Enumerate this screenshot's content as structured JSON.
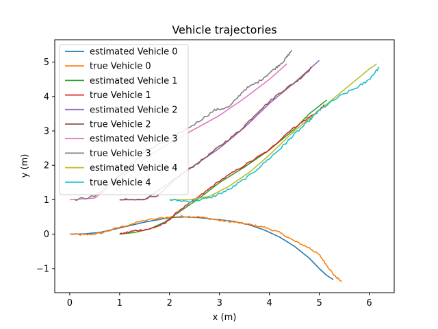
{
  "chart_data": {
    "type": "line",
    "title": "Vehicle trajectories",
    "xlabel": "x (m)",
    "ylabel": "y (m)",
    "xlim": [
      -0.3,
      6.5
    ],
    "ylim": [
      -1.7,
      5.65
    ],
    "xticks": [
      0,
      1,
      2,
      3,
      4,
      5,
      6
    ],
    "yticks": [
      -1,
      0,
      1,
      2,
      3,
      4,
      5
    ],
    "legend": "upper-left",
    "series": [
      {
        "name": "estimated Vehicle 0",
        "color": "#1f77b4",
        "jitter": 0,
        "points": [
          [
            0,
            0
          ],
          [
            0.3,
            0.01
          ],
          [
            0.6,
            0.05
          ],
          [
            1.0,
            0.18
          ],
          [
            1.5,
            0.35
          ],
          [
            2.0,
            0.48
          ],
          [
            2.3,
            0.5
          ],
          [
            2.6,
            0.48
          ],
          [
            3.0,
            0.42
          ],
          [
            3.3,
            0.37
          ],
          [
            3.6,
            0.27
          ],
          [
            3.9,
            0.12
          ],
          [
            4.2,
            -0.08
          ],
          [
            4.5,
            -0.35
          ],
          [
            4.8,
            -0.7
          ],
          [
            5.0,
            -1.0
          ],
          [
            5.15,
            -1.2
          ],
          [
            5.28,
            -1.32
          ]
        ]
      },
      {
        "name": "true Vehicle 0",
        "color": "#ff7f0e",
        "jitter": 0.025,
        "points": [
          [
            0,
            0
          ],
          [
            0.3,
            -0.02
          ],
          [
            0.6,
            0.02
          ],
          [
            1.0,
            0.2
          ],
          [
            1.5,
            0.4
          ],
          [
            2.0,
            0.5
          ],
          [
            2.3,
            0.52
          ],
          [
            2.6,
            0.5
          ],
          [
            3.0,
            0.4
          ],
          [
            3.3,
            0.35
          ],
          [
            3.6,
            0.28
          ],
          [
            3.9,
            0.2
          ],
          [
            4.2,
            0.05
          ],
          [
            4.5,
            -0.2
          ],
          [
            4.8,
            -0.4
          ],
          [
            5.0,
            -0.6
          ],
          [
            5.15,
            -0.9
          ],
          [
            5.3,
            -1.2
          ],
          [
            5.45,
            -1.38
          ]
        ]
      },
      {
        "name": "estimated Vehicle 1",
        "color": "#2ca02c",
        "jitter": 0,
        "points": [
          [
            1.0,
            0
          ],
          [
            1.3,
            0.05
          ],
          [
            1.6,
            0.15
          ],
          [
            1.9,
            0.35
          ],
          [
            2.2,
            0.65
          ],
          [
            2.6,
            1.05
          ],
          [
            3.0,
            1.5
          ],
          [
            3.5,
            1.95
          ],
          [
            4.0,
            2.45
          ],
          [
            4.5,
            3.05
          ],
          [
            4.8,
            3.5
          ],
          [
            5.15,
            3.9
          ]
        ]
      },
      {
        "name": "true Vehicle 1",
        "color": "#d62728",
        "jitter": 0.025,
        "points": [
          [
            1.0,
            0
          ],
          [
            1.3,
            0.1
          ],
          [
            1.6,
            0.15
          ],
          [
            1.9,
            0.3
          ],
          [
            2.2,
            0.7
          ],
          [
            2.6,
            1.1
          ],
          [
            3.0,
            1.55
          ],
          [
            3.5,
            2.0
          ],
          [
            4.0,
            2.45
          ],
          [
            4.4,
            3.0
          ],
          [
            4.7,
            3.3
          ],
          [
            5.0,
            3.6
          ],
          [
            5.1,
            3.75
          ]
        ]
      },
      {
        "name": "estimated Vehicle 2",
        "color": "#9467bd",
        "jitter": 0,
        "points": [
          [
            1.0,
            1.0
          ],
          [
            1.5,
            1.0
          ],
          [
            2.0,
            1.5
          ],
          [
            2.5,
            2.0
          ],
          [
            3.0,
            2.5
          ],
          [
            3.5,
            3.1
          ],
          [
            4.0,
            3.8
          ],
          [
            4.5,
            4.4
          ],
          [
            5.0,
            5.05
          ]
        ]
      },
      {
        "name": "true Vehicle 2",
        "color": "#8c564b",
        "jitter": 0.03,
        "points": [
          [
            1.0,
            1.0
          ],
          [
            1.4,
            1.0
          ],
          [
            1.8,
            1.15
          ],
          [
            2.2,
            1.7
          ],
          [
            2.6,
            2.1
          ],
          [
            3.0,
            2.55
          ],
          [
            3.4,
            3.0
          ],
          [
            3.8,
            3.6
          ],
          [
            4.2,
            4.1
          ],
          [
            4.6,
            4.5
          ],
          [
            4.85,
            4.85
          ]
        ]
      },
      {
        "name": "estimated Vehicle 3",
        "color": "#e377c2",
        "jitter": 0,
        "points": [
          [
            0,
            1.0
          ],
          [
            0.5,
            1.05
          ],
          [
            1.0,
            1.6
          ],
          [
            1.5,
            2.2
          ],
          [
            2.0,
            2.65
          ],
          [
            2.5,
            3.05
          ],
          [
            3.0,
            3.45
          ],
          [
            3.5,
            3.95
          ],
          [
            4.0,
            4.5
          ],
          [
            4.35,
            4.95
          ]
        ]
      },
      {
        "name": "true Vehicle 3",
        "color": "#7f7f7f",
        "jitter": 0.035,
        "points": [
          [
            0.1,
            1.0
          ],
          [
            0.5,
            1.1
          ],
          [
            1.0,
            1.7
          ],
          [
            1.5,
            2.4
          ],
          [
            2.0,
            2.75
          ],
          [
            2.5,
            3.2
          ],
          [
            2.9,
            3.6
          ],
          [
            3.2,
            3.7
          ],
          [
            3.5,
            4.2
          ],
          [
            3.8,
            4.45
          ],
          [
            4.1,
            4.8
          ],
          [
            4.3,
            5.05
          ],
          [
            4.45,
            5.35
          ]
        ]
      },
      {
        "name": "estimated Vehicle 4",
        "color": "#bcbd22",
        "jitter": 0,
        "points": [
          [
            2.0,
            1.0
          ],
          [
            2.4,
            1.0
          ],
          [
            2.8,
            1.1
          ],
          [
            3.2,
            1.4
          ],
          [
            3.6,
            1.8
          ],
          [
            4.0,
            2.3
          ],
          [
            4.5,
            3.0
          ],
          [
            5.0,
            3.6
          ],
          [
            5.5,
            4.2
          ],
          [
            6.0,
            4.8
          ],
          [
            6.15,
            4.95
          ]
        ]
      },
      {
        "name": "true Vehicle 4",
        "color": "#17becf",
        "jitter": 0.035,
        "points": [
          [
            2.0,
            1.0
          ],
          [
            2.4,
            0.95
          ],
          [
            2.8,
            1.05
          ],
          [
            3.2,
            1.3
          ],
          [
            3.6,
            1.7
          ],
          [
            4.0,
            2.2
          ],
          [
            4.3,
            2.6
          ],
          [
            4.5,
            2.9
          ],
          [
            4.8,
            3.3
          ],
          [
            5.0,
            3.6
          ],
          [
            5.4,
            4.0
          ],
          [
            5.8,
            4.3
          ],
          [
            6.0,
            4.5
          ],
          [
            6.2,
            4.85
          ]
        ]
      }
    ]
  }
}
